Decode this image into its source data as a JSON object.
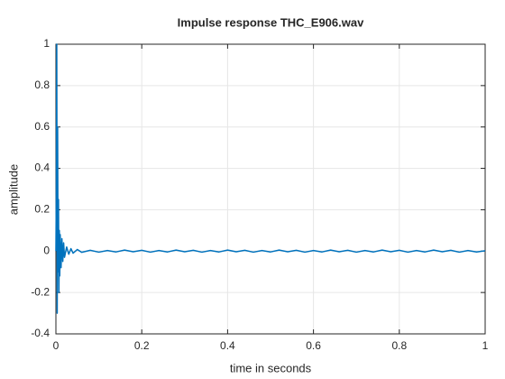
{
  "chart_data": {
    "type": "line",
    "title": "Impulse response THC_E906.wav",
    "xlabel": "time in seconds",
    "ylabel": "amplitude",
    "color": "#0072bd",
    "grid": true,
    "xlim": [
      0,
      1
    ],
    "ylim": [
      -0.4,
      1
    ],
    "xticks": [
      0,
      0.2,
      0.4,
      0.6,
      0.8,
      1
    ],
    "yticks": [
      -0.4,
      -0.2,
      0,
      0.2,
      0.4,
      0.6,
      0.8,
      1
    ],
    "x": [
      0,
      0.001,
      0.002,
      0.003,
      0.004,
      0.005,
      0.006,
      0.007,
      0.008,
      0.009,
      0.01,
      0.012,
      0.014,
      0.016,
      0.018,
      0.02,
      0.025,
      0.03,
      0.035,
      0.04,
      0.05,
      0.06,
      0.08,
      0.1,
      0.12,
      0.14,
      0.16,
      0.18,
      0.2,
      0.22,
      0.24,
      0.26,
      0.28,
      0.3,
      0.32,
      0.34,
      0.36,
      0.38,
      0.4,
      0.42,
      0.44,
      0.46,
      0.48,
      0.5,
      0.52,
      0.54,
      0.56,
      0.58,
      0.6,
      0.62,
      0.64,
      0.66,
      0.68,
      0.7,
      0.72,
      0.74,
      0.76,
      0.78,
      0.8,
      0.82,
      0.84,
      0.86,
      0.88,
      0.9,
      0.92,
      0.94,
      0.96,
      0.98,
      1
    ],
    "values": [
      0,
      0.3,
      1,
      -0.3,
      0.6,
      -0.1,
      0.25,
      -0.2,
      0.1,
      -0.12,
      0.08,
      -0.08,
      0.06,
      -0.05,
      0.04,
      -0.03,
      0.02,
      -0.015,
      0.012,
      -0.01,
      0.008,
      -0.006,
      0.004,
      -0.005,
      0.003,
      -0.004,
      0.005,
      -0.003,
      0.004,
      -0.005,
      0.003,
      -0.004,
      0.005,
      -0.003,
      0.004,
      -0.005,
      0.003,
      -0.004,
      0.005,
      -0.003,
      0.004,
      -0.005,
      0.003,
      -0.004,
      0.005,
      -0.003,
      0.004,
      -0.005,
      0.003,
      -0.004,
      0.005,
      -0.003,
      0.004,
      -0.005,
      0.003,
      -0.004,
      0.005,
      -0.003,
      0.004,
      -0.005,
      0.003,
      -0.004,
      0.005,
      -0.003,
      0.004,
      -0.005,
      0.003,
      -0.004,
      0.002
    ]
  }
}
